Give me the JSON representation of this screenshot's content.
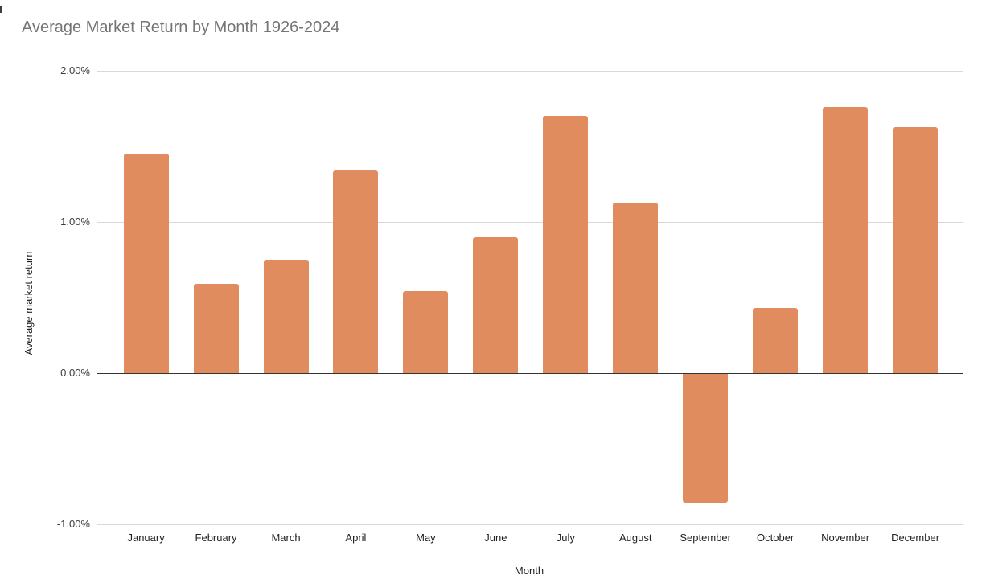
{
  "chart_data": {
    "type": "bar",
    "title": "Average Market Return by Month 1926-2024",
    "xlabel": "Month",
    "ylabel": "Average market return",
    "categories": [
      "January",
      "February",
      "March",
      "April",
      "May",
      "June",
      "July",
      "August",
      "September",
      "October",
      "November",
      "December"
    ],
    "values": [
      1.45,
      0.59,
      0.75,
      1.34,
      0.54,
      0.9,
      1.7,
      1.13,
      -0.85,
      0.43,
      1.76,
      1.63
    ],
    "value_unit": "%",
    "ylim": [
      -1,
      2
    ],
    "yticks": [
      {
        "label": "2.00%",
        "value": 2
      },
      {
        "label": "1.00%",
        "value": 1
      },
      {
        "label": "0.00%",
        "value": 0
      },
      {
        "label": "-1.00%",
        "value": -1
      }
    ],
    "grid": "horizontal",
    "legend": "none",
    "bar_color": "#E08C5E"
  },
  "colors": {
    "bar": "#E08C5E",
    "title_text": "#757575",
    "tick_text": "#3c3c3c",
    "axis_title_text": "#222222",
    "gridline": "#d9d9d9",
    "zero_line": "#333333",
    "background": "#ffffff"
  }
}
